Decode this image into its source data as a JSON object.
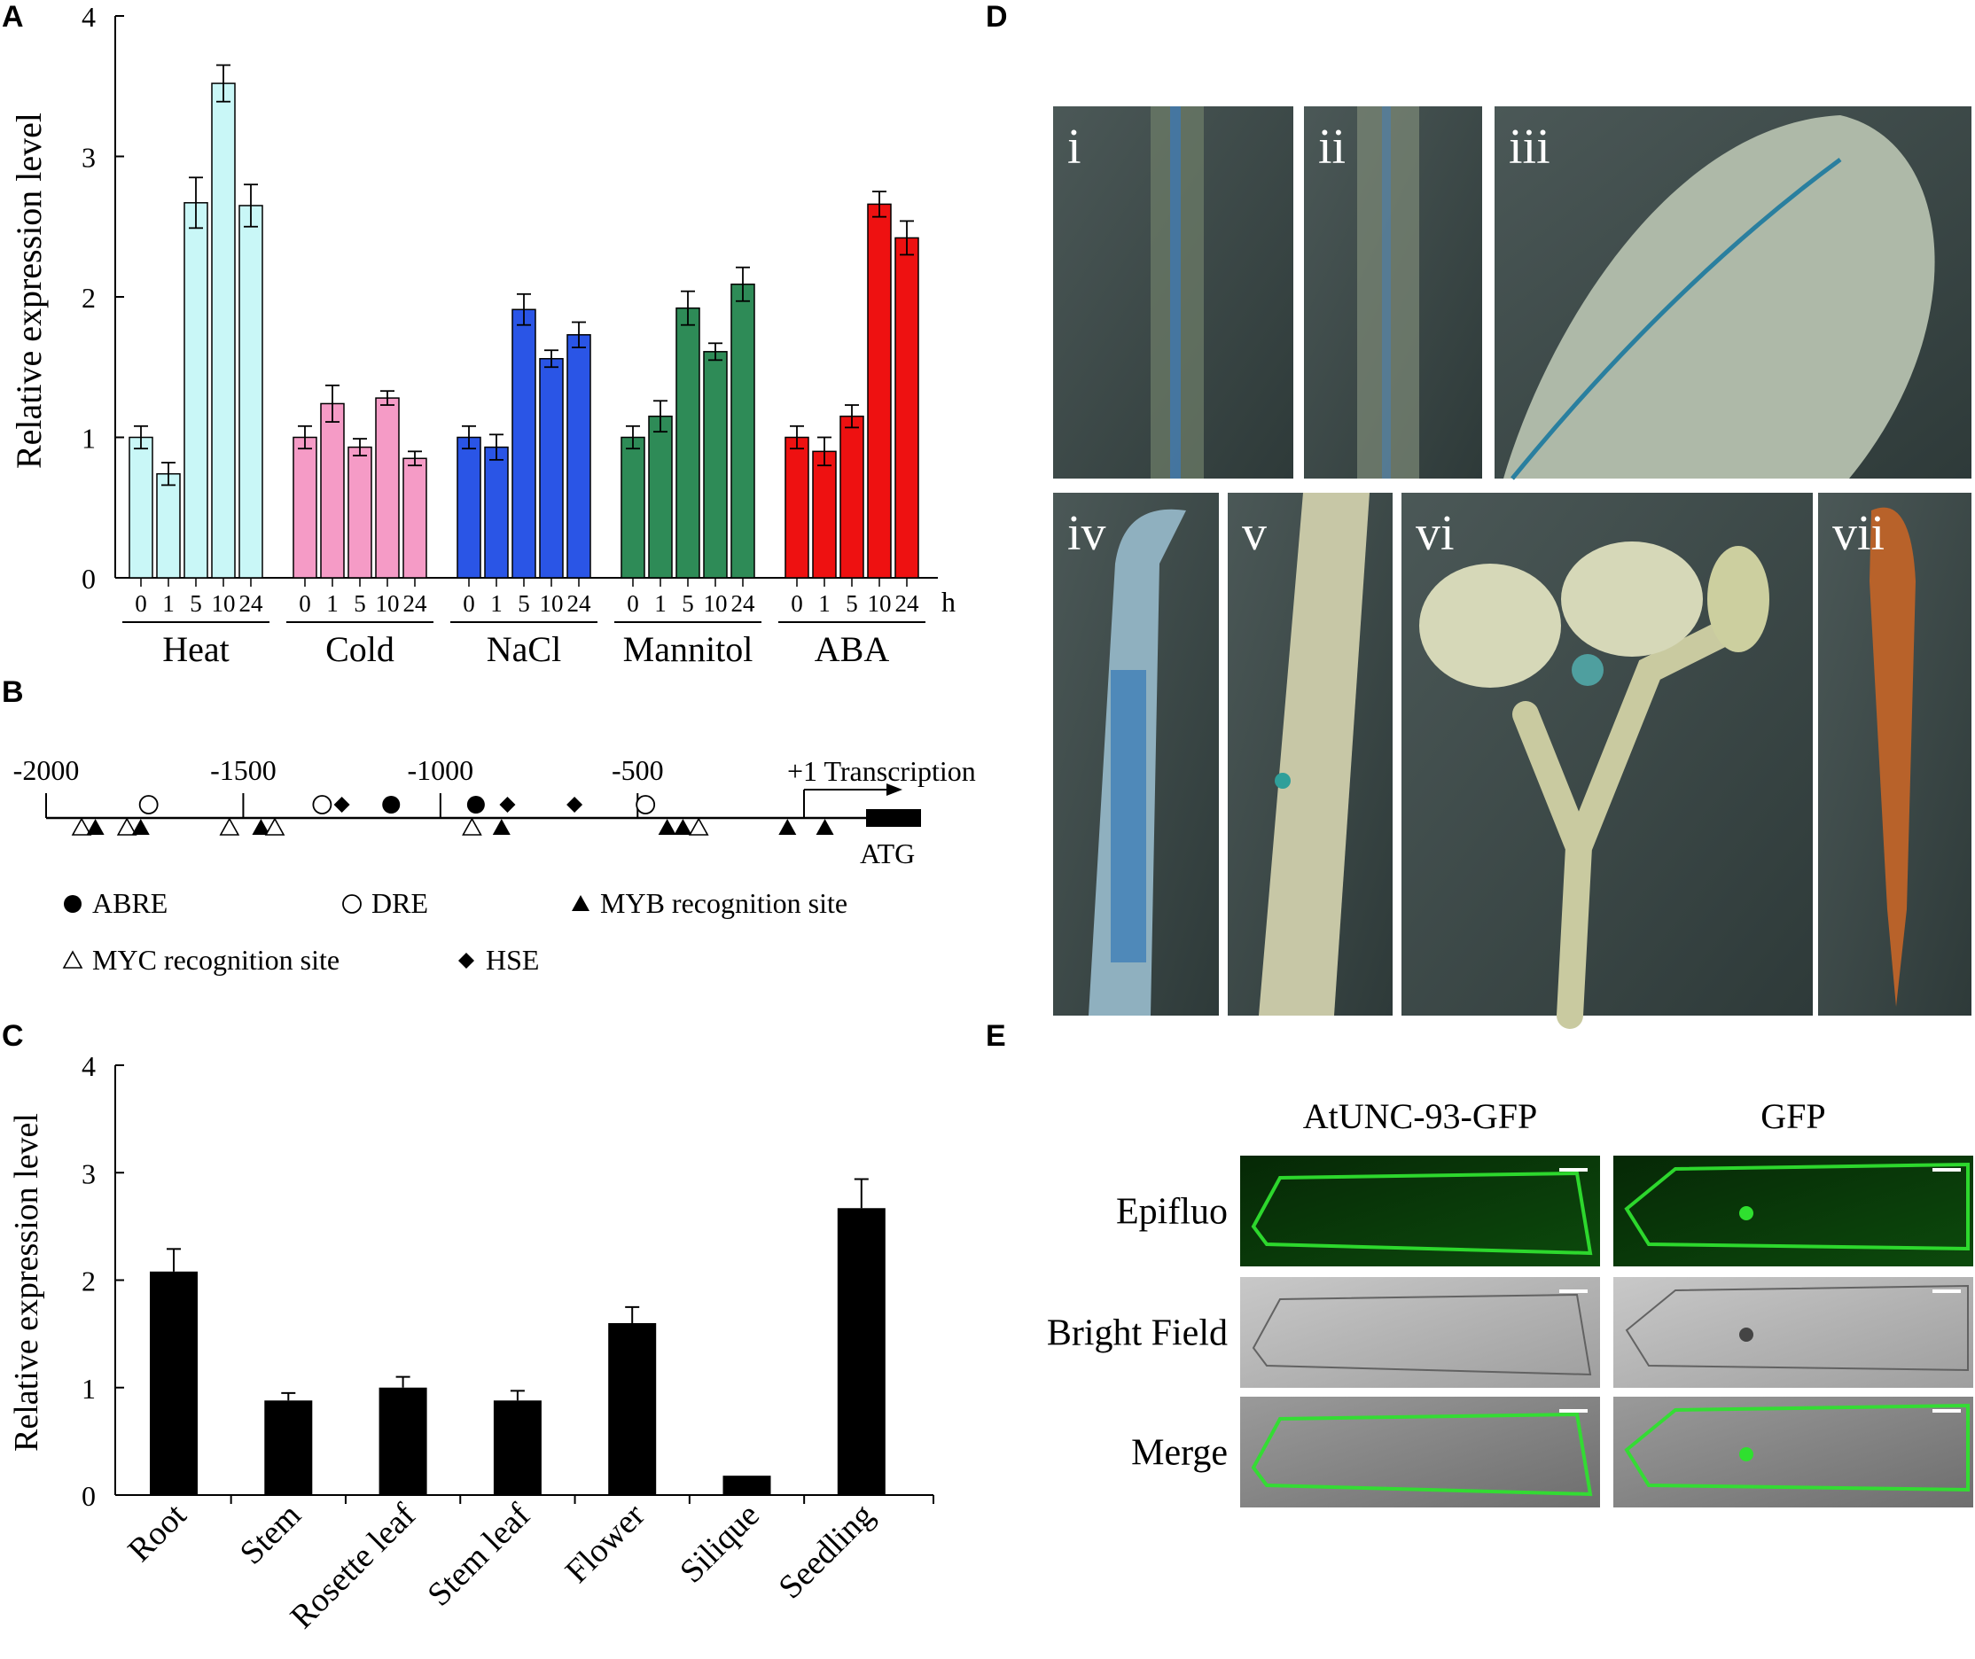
{
  "panels": {
    "A": "A",
    "B": "B",
    "C": "C",
    "D": "D",
    "E": "E"
  },
  "chart_data": [
    {
      "panel": "A",
      "type": "bar",
      "ylabel": "Relative expression level",
      "ylim": [
        0,
        4
      ],
      "yticks": [
        "0",
        "1",
        "2",
        "3",
        "4"
      ],
      "time_points": [
        "0",
        "1",
        "5",
        "10",
        "24"
      ],
      "time_unit": "h",
      "groups": [
        {
          "name": "Heat",
          "color": "#c9f7f7",
          "values": [
            1.0,
            0.74,
            2.67,
            3.52,
            2.65
          ],
          "errors": [
            0.08,
            0.08,
            0.18,
            0.13,
            0.15
          ]
        },
        {
          "name": "Cold",
          "color": "#f59bc6",
          "values": [
            1.0,
            1.24,
            0.93,
            1.28,
            0.85
          ],
          "errors": [
            0.08,
            0.13,
            0.06,
            0.05,
            0.05
          ]
        },
        {
          "name": "NaCl",
          "color": "#2a55e6",
          "values": [
            1.0,
            0.93,
            1.91,
            1.56,
            1.73
          ],
          "errors": [
            0.08,
            0.09,
            0.11,
            0.06,
            0.09
          ]
        },
        {
          "name": "Mannitol",
          "color": "#2e8b57",
          "values": [
            1.0,
            1.15,
            1.92,
            1.61,
            2.09
          ],
          "errors": [
            0.08,
            0.11,
            0.12,
            0.06,
            0.12
          ]
        },
        {
          "name": "ABA",
          "color": "#ee1111",
          "values": [
            1.0,
            0.9,
            1.15,
            2.66,
            2.42
          ],
          "errors": [
            0.08,
            0.1,
            0.08,
            0.09,
            0.12
          ]
        }
      ]
    },
    {
      "panel": "C",
      "type": "bar",
      "ylabel": "Relative expression level",
      "ylim": [
        0,
        4
      ],
      "yticks": [
        "0",
        "1",
        "2",
        "3",
        "4"
      ],
      "categories": [
        "Root",
        "Stem",
        "Rosette leaf",
        "Stem leaf",
        "Flower",
        "Silique",
        "Seedling"
      ],
      "values": [
        2.08,
        0.88,
        1.0,
        0.88,
        1.6,
        0.18,
        2.67
      ],
      "errors": [
        0.21,
        0.07,
        0.1,
        0.09,
        0.15,
        0.0,
        0.27
      ],
      "color": "#000000"
    }
  ],
  "promoter": {
    "ticks": [
      {
        "label": "-2000",
        "pos": -2000
      },
      {
        "label": "-1500",
        "pos": -1500
      },
      {
        "label": "-1000",
        "pos": -1000
      },
      {
        "label": "-500",
        "pos": -500
      }
    ],
    "transcription_label": "+1 Transcription",
    "atg_label": "ATG",
    "elements_above": [
      {
        "type": "DRE",
        "pos": -1740
      },
      {
        "type": "DRE",
        "pos": -1300
      },
      {
        "type": "HSE",
        "pos": -1250
      },
      {
        "type": "ABRE",
        "pos": -1125
      },
      {
        "type": "ABRE",
        "pos": -910
      },
      {
        "type": "HSE",
        "pos": -830
      },
      {
        "type": "HSE",
        "pos": -660
      },
      {
        "type": "DRE",
        "pos": -480
      }
    ],
    "elements_below": [
      {
        "type": "MYC",
        "pos": -1910
      },
      {
        "type": "MYB",
        "pos": -1875
      },
      {
        "type": "MYC",
        "pos": -1795
      },
      {
        "type": "MYB",
        "pos": -1760
      },
      {
        "type": "MYC",
        "pos": -1535
      },
      {
        "type": "MYB",
        "pos": -1455
      },
      {
        "type": "MYC",
        "pos": -1420
      },
      {
        "type": "MYC",
        "pos": -920
      },
      {
        "type": "MYB",
        "pos": -845
      },
      {
        "type": "MYB",
        "pos": -425
      },
      {
        "type": "MYB",
        "pos": -385
      },
      {
        "type": "MYC",
        "pos": -345
      },
      {
        "type": "MYB",
        "pos": -120
      },
      {
        "type": "MYB",
        "pos": -25
      }
    ],
    "legend": [
      {
        "type": "ABRE",
        "label": "ABRE"
      },
      {
        "type": "DRE",
        "label": "DRE"
      },
      {
        "type": "MYB",
        "label": "MYB recognition site"
      },
      {
        "type": "MYC",
        "label": "MYC recognition site"
      },
      {
        "type": "HSE",
        "label": "HSE"
      }
    ]
  },
  "gus_panels": [
    {
      "id": "i",
      "label": "i"
    },
    {
      "id": "ii",
      "label": "ii"
    },
    {
      "id": "iii",
      "label": "iii"
    },
    {
      "id": "iv",
      "label": "iv"
    },
    {
      "id": "v",
      "label": "v"
    },
    {
      "id": "vi",
      "label": "vi"
    },
    {
      "id": "vii",
      "label": "vii"
    }
  ],
  "microscopy": {
    "columns": [
      "AtUNC-93-GFP",
      "GFP"
    ],
    "rows": [
      "Epifluo",
      "Bright Field",
      "Merge"
    ]
  },
  "colors": {
    "photo_bg": "#3c4a48",
    "gfp_bg": "#0a3a0a",
    "bright_bg": "#bfbfbf",
    "gfp_line": "#2fe02f"
  }
}
